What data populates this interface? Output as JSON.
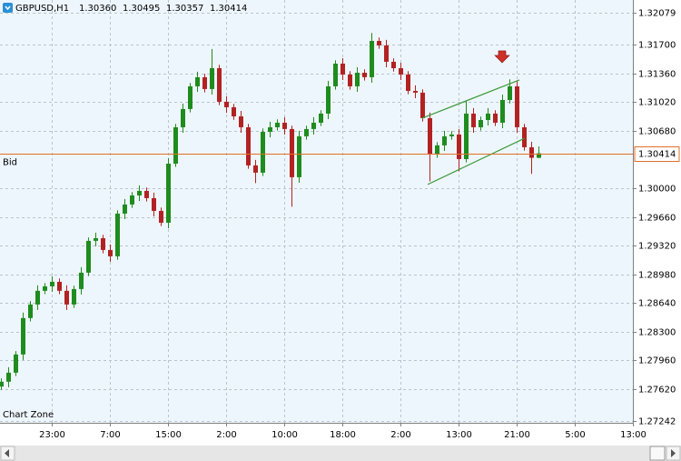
{
  "chart_data": {
    "type": "candlestick",
    "header": {
      "symbol": "GBPUSD,H1",
      "values": [
        "1.30360",
        "1.30495",
        "1.30357",
        "1.30414"
      ]
    },
    "caption": "Chart Zone",
    "up_color": "#1e8c1e",
    "down_color": "#b22222",
    "open": [
      1.2765,
      1.27707,
      1.27814,
      1.2803,
      1.28461,
      1.28622,
      1.28784,
      1.28837,
      1.28891,
      1.28784,
      1.28622,
      1.28805,
      1.28999,
      1.29376,
      1.29408,
      1.29268,
      1.29193,
      1.29699,
      1.29807,
      1.29914,
      1.29968,
      1.29882,
      1.29731,
      1.29591,
      1.30291,
      1.30722,
      1.30938,
      1.31207,
      1.31315,
      1.31175,
      1.31422,
      1.31024,
      1.30959,
      1.30851,
      1.30722,
      1.3027,
      1.30184,
      1.30668,
      1.30722,
      1.30776,
      1.30701,
      1.3013,
      1.30615,
      1.30701,
      1.30776,
      1.30884,
      1.31207,
      1.31476,
      1.31347,
      1.31207,
      1.31368,
      1.31315,
      1.31745,
      1.31692,
      1.31498,
      1.31422,
      1.31347,
      1.31153,
      1.31132,
      1.3083,
      1.30399,
      1.30507,
      1.30615,
      1.30636,
      1.30345,
      1.30884,
      1.30722,
      1.30808,
      1.30884,
      1.30776,
      1.31045,
      1.31207,
      1.30722,
      1.30485,
      1.3036
    ],
    "high": [
      1.27747,
      1.27879,
      1.2807,
      1.28526,
      1.28662,
      1.28849,
      1.28877,
      1.28956,
      1.28931,
      1.28849,
      1.28845,
      1.29064,
      1.29416,
      1.29473,
      1.29448,
      1.29333,
      1.29739,
      1.29872,
      1.29954,
      1.30033,
      1.30008,
      1.29947,
      1.29771,
      1.30356,
      1.30762,
      1.31003,
      1.31247,
      1.3138,
      1.31355,
      1.3165,
      1.31462,
      1.31089,
      1.30999,
      1.30916,
      1.30762,
      1.30335,
      1.30708,
      1.30787,
      1.30816,
      1.30841,
      1.30741,
      1.3068,
      1.30741,
      1.30841,
      1.30924,
      1.31272,
      1.31516,
      1.31541,
      1.31387,
      1.31433,
      1.31408,
      1.3184,
      1.31785,
      1.31757,
      1.31538,
      1.31487,
      1.31387,
      1.31218,
      1.31172,
      1.30895,
      1.30547,
      1.3068,
      1.30676,
      1.30701,
      1.3103,
      1.30949,
      1.30848,
      1.30949,
      1.30924,
      1.3111,
      1.3129,
      1.31272,
      1.30762,
      1.3055,
      1.30495
    ],
    "low": [
      1.2761,
      1.27642,
      1.27774,
      1.27965,
      1.28421,
      1.28557,
      1.28744,
      1.28772,
      1.28744,
      1.28557,
      1.28582,
      1.2874,
      1.28959,
      1.29311,
      1.29228,
      1.29128,
      1.29153,
      1.29634,
      1.29767,
      1.29849,
      1.29842,
      1.29666,
      1.29551,
      1.29526,
      1.30251,
      1.30657,
      1.30898,
      1.31142,
      1.31135,
      1.3111,
      1.30984,
      1.30894,
      1.30811,
      1.30657,
      1.3023,
      1.3006,
      1.30144,
      1.30603,
      1.30682,
      1.30636,
      1.2978,
      1.30065,
      1.30575,
      1.30636,
      1.30736,
      1.30819,
      1.31167,
      1.31282,
      1.31167,
      1.31142,
      1.31275,
      1.3125,
      1.31652,
      1.31433,
      1.31382,
      1.31282,
      1.31113,
      1.31067,
      1.3079,
      1.3008,
      1.30359,
      1.30442,
      1.30575,
      1.302,
      1.30305,
      1.30657,
      1.30682,
      1.30743,
      1.30736,
      1.30711,
      1.31005,
      1.30657,
      1.30445,
      1.3017,
      1.30357
    ],
    "close": [
      1.27707,
      1.27814,
      1.2803,
      1.28461,
      1.28622,
      1.28784,
      1.28837,
      1.28891,
      1.28784,
      1.28622,
      1.28805,
      1.28999,
      1.29376,
      1.29408,
      1.29268,
      1.29193,
      1.29699,
      1.29807,
      1.29914,
      1.29968,
      1.29882,
      1.29731,
      1.29591,
      1.30291,
      1.30722,
      1.30938,
      1.31207,
      1.31315,
      1.31175,
      1.31422,
      1.31024,
      1.30959,
      1.30851,
      1.30722,
      1.3027,
      1.30184,
      1.30668,
      1.30722,
      1.30776,
      1.30701,
      1.3013,
      1.30615,
      1.30701,
      1.30776,
      1.30884,
      1.31207,
      1.31476,
      1.31347,
      1.31207,
      1.31368,
      1.31315,
      1.31745,
      1.31692,
      1.31498,
      1.31422,
      1.31347,
      1.31153,
      1.31132,
      1.3083,
      1.30399,
      1.30507,
      1.30615,
      1.30636,
      1.30345,
      1.30884,
      1.30722,
      1.30808,
      1.30884,
      1.30776,
      1.31045,
      1.31207,
      1.30722,
      1.30485,
      1.3036,
      1.30414
    ],
    "xlim": [
      -0.125,
      87
    ],
    "xticks": [
      {
        "value": 7,
        "label": "23:00"
      },
      {
        "value": 15,
        "label": "7:00"
      },
      {
        "value": 23,
        "label": "15:00"
      },
      {
        "value": 31,
        "label": "2:00"
      },
      {
        "value": 39,
        "label": "10:00"
      },
      {
        "value": 47,
        "label": "18:00"
      },
      {
        "value": 55,
        "label": "2:00"
      },
      {
        "value": 63,
        "label": "13:00"
      },
      {
        "value": 71,
        "label": "21:00"
      },
      {
        "value": 79,
        "label": "5:00"
      },
      {
        "value": 87,
        "label": "13:00"
      }
    ],
    "ylim": [
      1.2722,
      1.3223
    ],
    "yticks": [
      1.32079,
      {
        "value": 1.317,
        "label": "1.31700"
      },
      {
        "value": 1.3136,
        "label": "1.31360"
      },
      {
        "value": 1.3102,
        "label": "1.31020"
      },
      {
        "value": 1.3068,
        "label": "1.30680"
      },
      {
        "value": 1.3,
        "label": "1.30000"
      },
      {
        "value": 1.2966,
        "label": "1.29660"
      },
      {
        "value": 1.2932,
        "label": "1.29320"
      },
      {
        "value": 1.2898,
        "label": "1.28980"
      },
      {
        "value": 1.2864,
        "label": "1.28640"
      },
      {
        "value": 1.283,
        "label": "1.28300"
      },
      {
        "value": 1.2796,
        "label": "1.27960"
      },
      {
        "value": 1.2762,
        "label": "1.27620"
      },
      1.27242
    ],
    "grid": true,
    "bid": 1.30414,
    "bid_label": "Bid",
    "bid_color": "#e0702a",
    "lines": [
      {
        "color": "#3a9a3a",
        "x": [
          58,
          71.375
        ],
        "y": [
          1.3083,
          1.31282
        ]
      },
      {
        "color": "#3a9a3a",
        "x": [
          58.75,
          72.125
        ],
        "y": [
          1.30044,
          1.30593
        ]
      }
    ],
    "arrow": {
      "x": 69,
      "y": 1.3153,
      "color": "#d0302a"
    }
  }
}
